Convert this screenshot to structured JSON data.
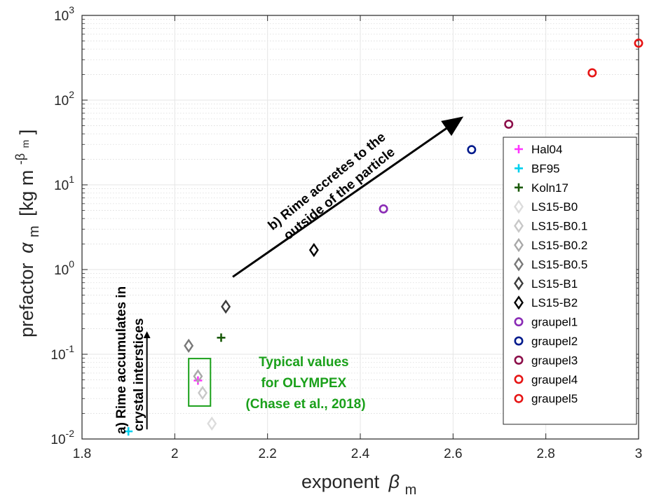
{
  "chart_data": {
    "type": "scatter",
    "xlabel": "exponent",
    "xlabel_symbol": "β",
    "xlabel_sub": "m",
    "ylabel": "prefactor",
    "ylabel_symbol": "α",
    "ylabel_sub": "m",
    "ylabel_unit_open": "[kg m",
    "ylabel_unit_sup": "-β",
    "ylabel_unit_supsub": "m",
    "ylabel_unit_close": "]",
    "xlim": [
      1.8,
      3.0
    ],
    "ylim": [
      0.01,
      1000
    ],
    "yscale": "log",
    "grid": true,
    "minor_grid": true,
    "legend_position": "right",
    "xticks": [
      "1.8",
      "2",
      "2.2",
      "2.4",
      "2.6",
      "2.8",
      "3"
    ],
    "yticks": [
      {
        "base": "10",
        "exp": "-2"
      },
      {
        "base": "10",
        "exp": "-1"
      },
      {
        "base": "10",
        "exp": "0"
      },
      {
        "base": "10",
        "exp": "1"
      },
      {
        "base": "10",
        "exp": "2"
      },
      {
        "base": "10",
        "exp": "3"
      }
    ],
    "series": [
      {
        "name": "Hal04",
        "marker": "plus",
        "color": "#ff33ff",
        "x": 2.05,
        "y": 0.049
      },
      {
        "name": "BF95",
        "marker": "plus",
        "color": "#00d0ee",
        "x": 1.9,
        "y": 0.0123
      },
      {
        "name": "Koln17",
        "marker": "plus",
        "color": "#1a5a0a",
        "x": 2.1,
        "y": 0.157
      },
      {
        "name": "LS15-B0",
        "marker": "diamond",
        "color": "#dcdcdc",
        "x": 2.08,
        "y": 0.0152
      },
      {
        "name": "LS15-B0.1",
        "marker": "diamond",
        "color": "#c8c8c8",
        "x": 2.06,
        "y": 0.035
      },
      {
        "name": "LS15-B0.2",
        "marker": "diamond",
        "color": "#a8a8a8",
        "x": 2.05,
        "y": 0.055
      },
      {
        "name": "LS15-B0.5",
        "marker": "diamond",
        "color": "#787878",
        "x": 2.03,
        "y": 0.126
      },
      {
        "name": "LS15-B1",
        "marker": "diamond",
        "color": "#3c3c3c",
        "x": 2.11,
        "y": 0.365
      },
      {
        "name": "LS15-B2",
        "marker": "diamond",
        "color": "#000000",
        "x": 2.3,
        "y": 1.7
      },
      {
        "name": "graupel1",
        "marker": "circle",
        "color": "#8a2bb5",
        "x": 2.45,
        "y": 5.2
      },
      {
        "name": "graupel2",
        "marker": "circle",
        "color": "#001a8c",
        "x": 2.64,
        "y": 26
      },
      {
        "name": "graupel3",
        "marker": "circle",
        "color": "#8c0f4a",
        "x": 2.72,
        "y": 52
      },
      {
        "name": "graupel4",
        "marker": "circle",
        "color": "#e61414",
        "x": 2.9,
        "y": 210
      },
      {
        "name": "graupel5",
        "marker": "circle",
        "color": "#e61414",
        "x": 3.0,
        "y": 470
      }
    ],
    "annotations": {
      "a_line1": "a) Rime accumulates in",
      "a_line2": "crystal interstices",
      "b_line1": "b) Rime accretes to the",
      "b_line2": "outside of the particle",
      "typical_line1": "Typical values",
      "typical_line2": "for OLYMPEX",
      "typical_line3": "(Chase et al., 2018)",
      "typical_color": "#1aa01a"
    },
    "arrows": [
      {
        "from": {
          "x": 1.94,
          "y": 0.013
        },
        "to": {
          "x": 1.94,
          "y": 0.17
        }
      },
      {
        "from": {
          "x": 2.125,
          "y": 0.82
        },
        "to": {
          "x": 2.615,
          "y": 60
        }
      }
    ],
    "box": {
      "x": [
        2.03,
        2.077
      ],
      "y": [
        0.0245,
        0.089
      ]
    }
  }
}
